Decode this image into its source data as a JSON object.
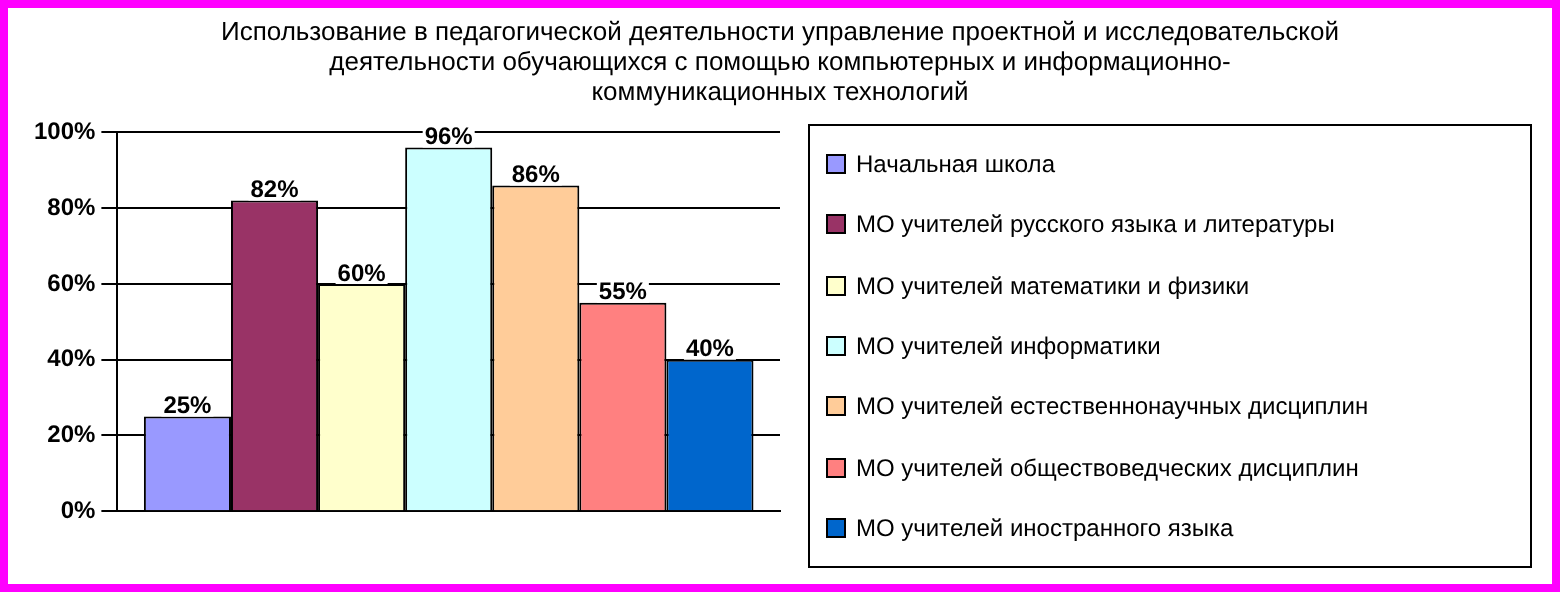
{
  "chart_data": {
    "type": "bar",
    "title": "Использование в педагогической деятельности управление проектной и исследовательской деятельности обучающихся с помощью компьютерных и информационно-коммуникационных технологий",
    "categories": [
      null
    ],
    "series": [
      {
        "name": "Начальная школа",
        "color": "#9999ff",
        "values": [
          25
        ],
        "value_labels": [
          "25%"
        ]
      },
      {
        "name": "МО учителей русского языка и литературы",
        "color": "#993366",
        "values": [
          82
        ],
        "value_labels": [
          "82%"
        ]
      },
      {
        "name": "МО учителей математики и физики",
        "color": "#ffffcc",
        "values": [
          60
        ],
        "value_labels": [
          "60%"
        ]
      },
      {
        "name": "МО учителей информатики",
        "color": "#ccffff",
        "values": [
          96
        ],
        "value_labels": [
          "96%"
        ]
      },
      {
        "name": "МО учителей естественнонаучных дисциплин",
        "color": "#ffcc99",
        "values": [
          86
        ],
        "value_labels": [
          "86%"
        ]
      },
      {
        "name": "МО учителей обществоведческих дисциплин",
        "color": "#ff8080",
        "values": [
          55
        ],
        "value_labels": [
          "55%"
        ]
      },
      {
        "name": "МО учителей иностранного языка",
        "color": "#0066cc",
        "values": [
          40
        ],
        "value_labels": [
          "40%"
        ]
      }
    ],
    "ylim": [
      0,
      100
    ],
    "yticks": [
      {
        "value": 0,
        "label": "0%"
      },
      {
        "value": 20,
        "label": "20%"
      },
      {
        "value": 40,
        "label": "40%"
      },
      {
        "value": 60,
        "label": "60%"
      },
      {
        "value": 80,
        "label": "80%"
      },
      {
        "value": 100,
        "label": "100%"
      }
    ],
    "grid": "y",
    "legend": "right"
  }
}
